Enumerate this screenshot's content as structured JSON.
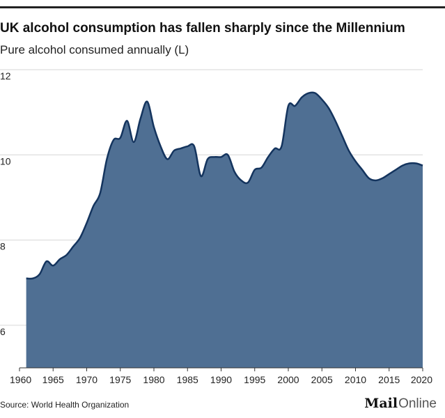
{
  "header": {
    "title": "UK alcohol consumption has fallen sharply since the Millennium",
    "subtitle": "Pure alcohol consumed annually (L)"
  },
  "footer": {
    "source": "Source: World Health Organization",
    "brand_mail": "Mail",
    "brand_online": "Online"
  },
  "colors": {
    "area_fill": "#4f6f93",
    "line": "#14345e",
    "grid": "#d6d6d6",
    "axis": "#333333"
  },
  "chart_data": {
    "type": "area",
    "title": "UK alcohol consumption has fallen sharply since the Millennium",
    "subtitle": "Pure alcohol consumed annually (L)",
    "xlabel": "",
    "ylabel": "",
    "xlim": [
      1961,
      2020
    ],
    "ylim": [
      5,
      12
    ],
    "y_ticks": [
      6,
      8,
      10,
      12
    ],
    "x_ticks": [
      1960,
      1965,
      1970,
      1975,
      1980,
      1985,
      1990,
      1995,
      2000,
      2005,
      2010,
      2015,
      2020
    ],
    "grid": "horizontal",
    "legend": "none",
    "x": [
      1961,
      1962,
      1963,
      1964,
      1965,
      1966,
      1967,
      1968,
      1969,
      1970,
      1971,
      1972,
      1973,
      1974,
      1975,
      1976,
      1977,
      1978,
      1979,
      1980,
      1981,
      1982,
      1983,
      1984,
      1985,
      1986,
      1987,
      1988,
      1989,
      1990,
      1991,
      1992,
      1993,
      1994,
      1995,
      1996,
      1997,
      1998,
      1999,
      2000,
      2001,
      2002,
      2003,
      2004,
      2005,
      2006,
      2007,
      2008,
      2009,
      2010,
      2011,
      2012,
      2013,
      2014,
      2015,
      2016,
      2017,
      2018,
      2019,
      2020
    ],
    "values": [
      7.1,
      7.1,
      7.2,
      7.5,
      7.4,
      7.55,
      7.65,
      7.85,
      8.05,
      8.4,
      8.8,
      9.1,
      9.9,
      10.35,
      10.4,
      10.8,
      10.3,
      10.85,
      11.25,
      10.65,
      10.2,
      9.9,
      10.1,
      10.15,
      10.2,
      10.2,
      9.5,
      9.9,
      9.95,
      9.95,
      10.0,
      9.6,
      9.4,
      9.35,
      9.65,
      9.7,
      9.95,
      10.15,
      10.2,
      11.15,
      11.15,
      11.35,
      11.45,
      11.45,
      11.3,
      11.1,
      10.8,
      10.45,
      10.1,
      9.85,
      9.65,
      9.45,
      9.4,
      9.45,
      9.55,
      9.65,
      9.75,
      9.8,
      9.8,
      9.75
    ]
  }
}
